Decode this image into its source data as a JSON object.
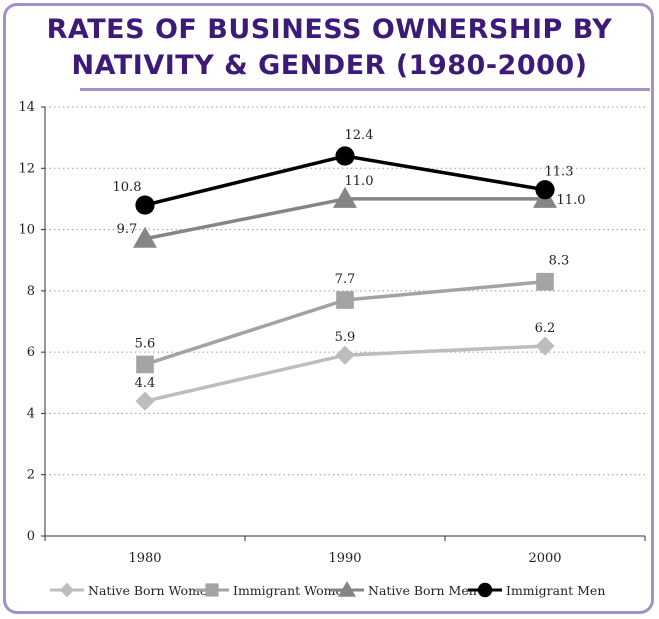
{
  "title_line1": "RATES OF BUSINESS OWNERSHIP BY",
  "title_line2": "NATIVITY & GENDER (1980-2000)",
  "chart_data": {
    "type": "line",
    "title": "RATES OF BUSINESS OWNERSHIP BY NATIVITY & GENDER (1980-2000)",
    "xlabel": "",
    "ylabel": "",
    "categories": [
      "1980",
      "1990",
      "2000"
    ],
    "ylim": [
      0,
      14
    ],
    "yticks": [
      0,
      2,
      4,
      6,
      8,
      10,
      12,
      14
    ],
    "grid": true,
    "legend": "bottom",
    "series": [
      {
        "name": "Native Born Women",
        "values": [
          4.4,
          5.9,
          6.2
        ],
        "labels": [
          "4.4",
          "5.9",
          "6.2"
        ],
        "color": "#bdbdbd",
        "marker": "diamond"
      },
      {
        "name": "Immigrant Women",
        "values": [
          5.6,
          7.7,
          8.3
        ],
        "labels": [
          "5.6",
          "7.7",
          "8.3"
        ],
        "color": "#a3a3a3",
        "marker": "square"
      },
      {
        "name": "Native Born Men",
        "values": [
          9.7,
          11.0,
          11.0
        ],
        "labels": [
          "9.7",
          "11.0",
          "11.0"
        ],
        "color": "#858585",
        "marker": "triangle"
      },
      {
        "name": "Immigrant Men",
        "values": [
          10.8,
          12.4,
          11.3
        ],
        "labels": [
          "10.8",
          "12.4",
          "11.3"
        ],
        "color": "#000000",
        "marker": "circle"
      }
    ]
  }
}
